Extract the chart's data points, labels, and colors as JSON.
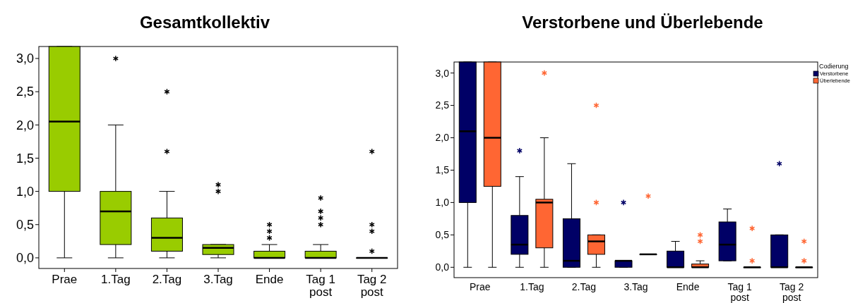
{
  "chart_data": [
    {
      "type": "box",
      "title": "Gesamtkollektiv",
      "categories": [
        "Prae",
        "1.Tag",
        "2.Tag",
        "3.Tag",
        "Ende",
        "Tag 1 post",
        "Tag 2 post"
      ],
      "color": "#99cc00",
      "ylim": [
        -0.16,
        3.18
      ],
      "yticks": [
        {
          "value": 0,
          "label": "0,0"
        },
        {
          "value": 0.5,
          "label": "0,5"
        },
        {
          "value": 1,
          "label": "1,0"
        },
        {
          "value": 1.5,
          "label": "1,5"
        },
        {
          "value": 2,
          "label": "2,0"
        },
        {
          "value": 2.5,
          "label": "2,5"
        },
        {
          "value": 3,
          "label": "3,0"
        }
      ],
      "grid": false,
      "legend": false,
      "marker": "cross",
      "boxes": [
        {
          "low": 0,
          "q1": 1.0,
          "median": 2.05,
          "q3": 3.18,
          "high": 3.18
        },
        {
          "low": 0,
          "q1": 0.2,
          "median": 0.7,
          "q3": 1.0,
          "high": 2.0,
          "outliers": [
            3.0
          ]
        },
        {
          "low": 0,
          "q1": 0.1,
          "median": 0.3,
          "q3": 0.6,
          "high": 1.0,
          "outliers": [
            1.6,
            2.5
          ]
        },
        {
          "low": 0,
          "q1": 0.05,
          "median": 0.15,
          "q3": 0.2,
          "high": 0.2,
          "outliers": [
            1.0,
            1.1
          ]
        },
        {
          "low": 0,
          "q1": 0,
          "median": 0,
          "q3": 0.1,
          "high": 0.2,
          "outliers": [
            0.3,
            0.4,
            0.5
          ]
        },
        {
          "low": 0,
          "q1": 0,
          "median": 0,
          "q3": 0.1,
          "high": 0.2,
          "outliers": [
            0.5,
            0.6,
            0.7,
            0.9
          ]
        },
        {
          "low": 0,
          "q1": 0,
          "median": 0,
          "q3": 0,
          "high": 0,
          "outliers": [
            0.1,
            0.4,
            0.5,
            1.6
          ]
        }
      ]
    },
    {
      "type": "box",
      "title": "Verstorbene und Überlebende",
      "legend_title": "Codierung",
      "categories": [
        "Prae",
        "1.Tag",
        "2.Tag",
        "3.Tag",
        "Ende",
        "Tag 1 post",
        "Tag 2 post"
      ],
      "ylim": [
        -0.16,
        3.17
      ],
      "yticks": [
        {
          "value": 0,
          "label": "0,0"
        },
        {
          "value": 0.5,
          "label": "0,5"
        },
        {
          "value": 1,
          "label": "1,0"
        },
        {
          "value": 1.5,
          "label": "1,5"
        },
        {
          "value": 2,
          "label": "2,0"
        },
        {
          "value": 2.5,
          "label": "2,5"
        },
        {
          "value": 3,
          "label": "3,0"
        }
      ],
      "grid": false,
      "legend": "top right",
      "marker": "cross",
      "series": [
        {
          "name": "Verstorbene",
          "color": "#000066",
          "boxes": [
            {
              "low": 0,
              "q1": 1.0,
              "median": 2.1,
              "q3": 3.17,
              "high": 3.17
            },
            {
              "low": 0,
              "q1": 0.2,
              "median": 0.35,
              "q3": 0.8,
              "high": 1.4,
              "outliers": [
                1.8
              ]
            },
            {
              "low": 0,
              "q1": 0,
              "median": 0.1,
              "q3": 0.75,
              "high": 1.6
            },
            {
              "low": 0,
              "q1": 0,
              "median": 0.1,
              "q3": 0.1,
              "high": 0.1,
              "outliers": [
                1.0
              ]
            },
            {
              "low": 0,
              "q1": 0,
              "median": 0,
              "q3": 0.25,
              "high": 0.4
            },
            {
              "low": 0.1,
              "q1": 0.1,
              "median": 0.35,
              "q3": 0.7,
              "high": 0.9
            },
            {
              "low": 0,
              "q1": 0,
              "median": 0,
              "q3": 0.5,
              "high": 0.5,
              "outliers": [
                1.6
              ]
            }
          ]
        },
        {
          "name": "Überlebende",
          "color": "#ff6633",
          "boxes": [
            {
              "low": 0,
              "q1": 1.25,
              "median": 2.0,
              "q3": 3.17,
              "high": 3.17
            },
            {
              "low": 0,
              "q1": 0.3,
              "median": 1.0,
              "q3": 1.05,
              "high": 2.0,
              "outliers": [
                3.0
              ]
            },
            {
              "low": 0,
              "q1": 0.2,
              "median": 0.4,
              "q3": 0.5,
              "high": 0.5,
              "outliers": [
                1.0,
                2.5
              ]
            },
            {
              "low": 0.2,
              "q1": 0.2,
              "median": 0.2,
              "q3": 0.2,
              "high": 0.2,
              "outliers": [
                1.1
              ]
            },
            {
              "low": 0,
              "q1": 0,
              "median": 0,
              "q3": 0.05,
              "high": 0.1,
              "outliers": [
                0.4,
                0.5
              ]
            },
            {
              "low": 0,
              "q1": 0,
              "median": 0,
              "q3": 0,
              "high": 0,
              "outliers": [
                0.1,
                0.6
              ]
            },
            {
              "low": 0,
              "q1": 0,
              "median": 0,
              "q3": 0,
              "high": 0,
              "outliers": [
                0.1,
                0.4
              ]
            }
          ]
        }
      ]
    }
  ]
}
